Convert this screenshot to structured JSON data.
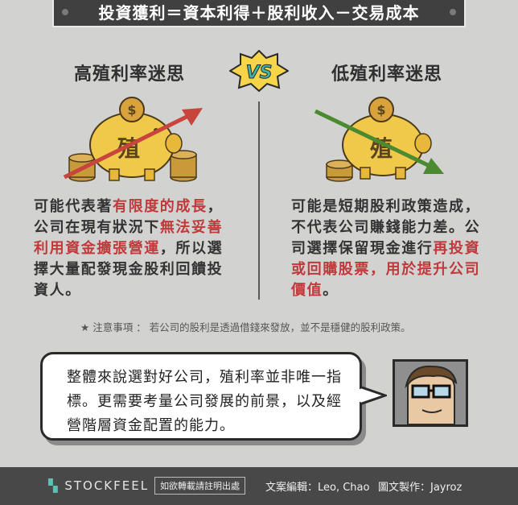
{
  "header": {
    "title": "投資獲利＝資本利得＋股利收入－交易成本"
  },
  "vs_label": "VS",
  "left": {
    "title": "高殖利率迷思",
    "pig_char": "殖",
    "coin_symbol": "$",
    "text_parts": [
      "可能代表著",
      "有限度的成長",
      "，公司在現有狀況下",
      "無法妥善利用資金擴張營運",
      "，所以選擇大量配發現金股利回饋投資人。"
    ]
  },
  "right": {
    "title": "低殖利率迷思",
    "pig_char": "殖",
    "coin_symbol": "$",
    "text_parts": [
      "可能是短期股利政策造成，不代表公司賺錢能力差。公司選擇保留現金進行",
      "再投資或回購股票，用於提升公司價值",
      "。"
    ]
  },
  "note": {
    "prefix": "注意事項",
    "text": "：  若公司的股利是透過借錢來發放，並不是穩健的股利政策。"
  },
  "speech": {
    "text": "整體來說選對好公司，殖利率並非唯一指標。更需要考量公司發展的前景，以及經營階層資金配置的能力。"
  },
  "footer": {
    "logo": "STOCKFEEL",
    "copyright": "如欲轉載請註明出處",
    "editor": "文案編輯：Leo, Chao",
    "designer": "圖文製作：Jayroz"
  },
  "colors": {
    "highlight": "#c0393b",
    "up_arrow": "#c8453d",
    "down_arrow": "#4b8a2e",
    "pig": "#f1c94a"
  }
}
